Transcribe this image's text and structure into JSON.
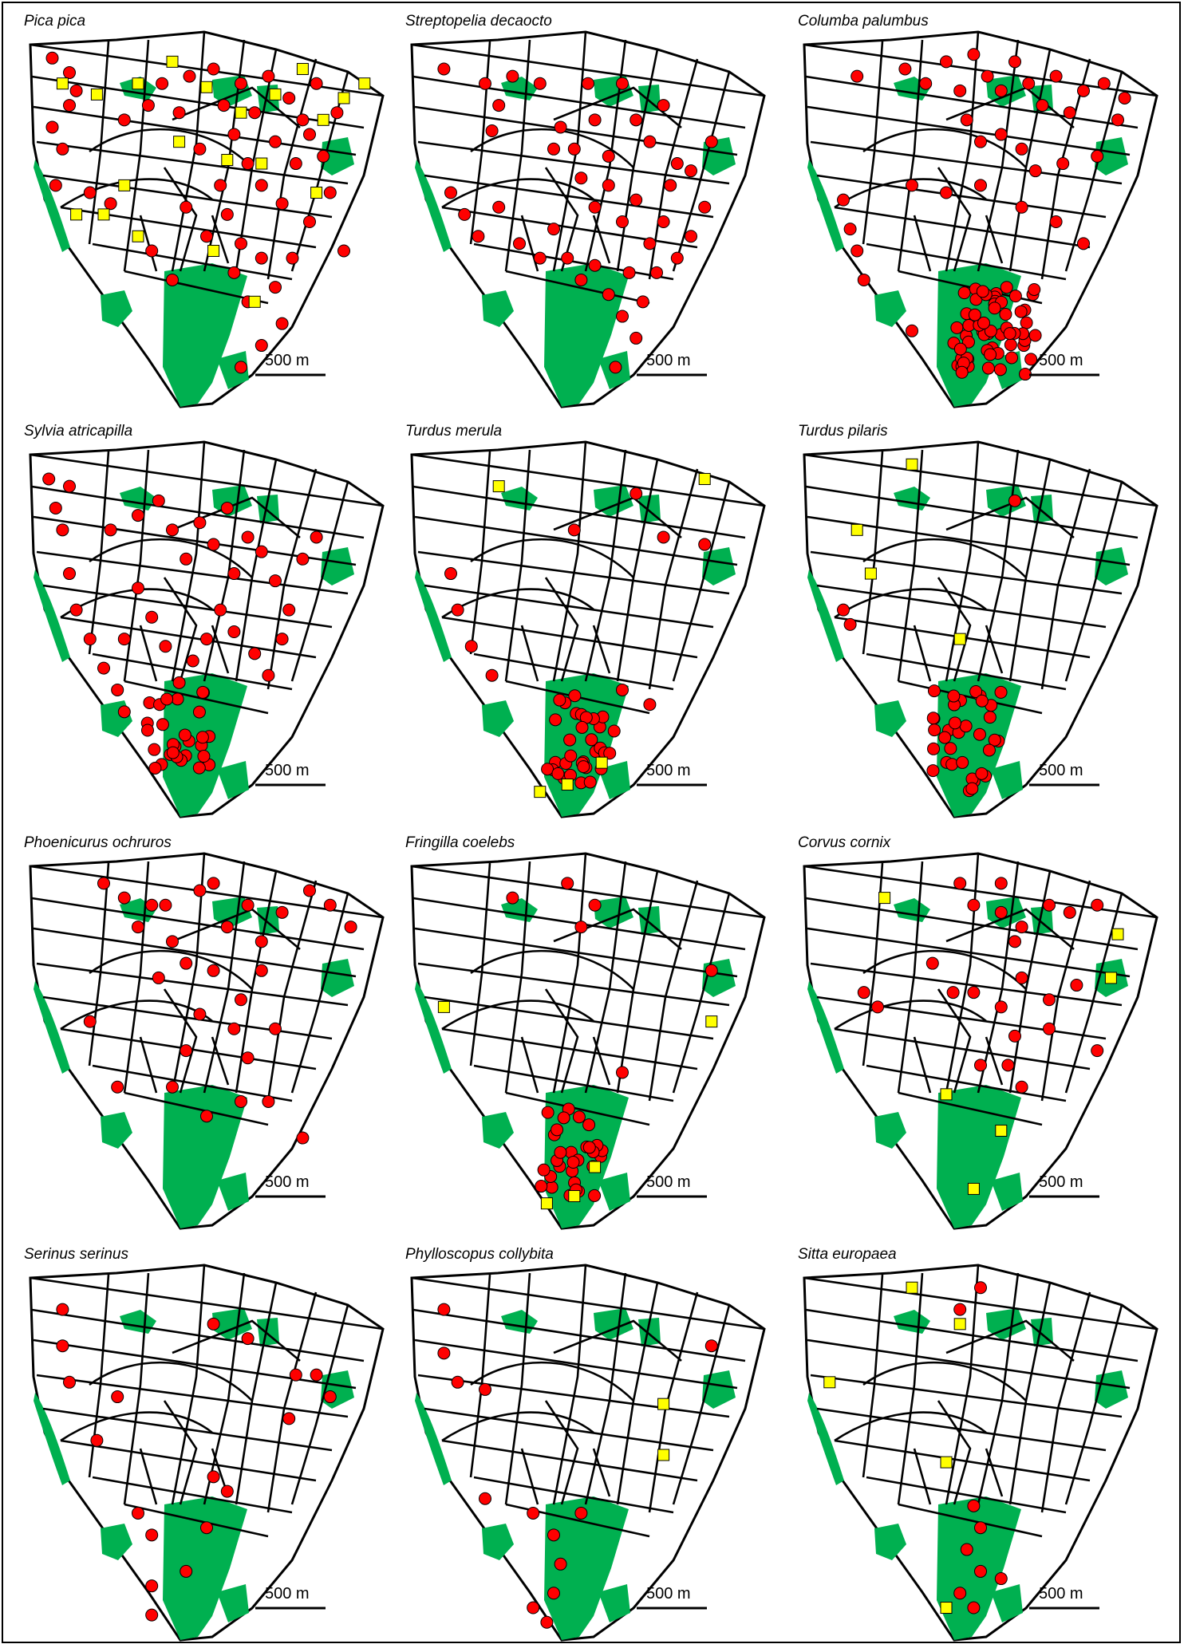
{
  "figure": {
    "scale_label": "500 m",
    "colors": {
      "green": "#00b050",
      "red": "#ff0000",
      "yellow": "#ffff00",
      "road": "#000000"
    },
    "markers": {
      "circle": "red-circle",
      "square": "yellow-square"
    }
  },
  "panels": [
    {
      "species": "Pica pica",
      "circles": [
        [
          0.05,
          0.05
        ],
        [
          0.1,
          0.09
        ],
        [
          0.12,
          0.14
        ],
        [
          0.1,
          0.18
        ],
        [
          0.05,
          0.24
        ],
        [
          0.08,
          0.3
        ],
        [
          0.06,
          0.4
        ],
        [
          0.16,
          0.42
        ],
        [
          0.22,
          0.45
        ],
        [
          0.26,
          0.22
        ],
        [
          0.33,
          0.18
        ],
        [
          0.37,
          0.12
        ],
        [
          0.42,
          0.2
        ],
        [
          0.45,
          0.1
        ],
        [
          0.48,
          0.3
        ],
        [
          0.52,
          0.08
        ],
        [
          0.55,
          0.18
        ],
        [
          0.58,
          0.26
        ],
        [
          0.6,
          0.12
        ],
        [
          0.62,
          0.34
        ],
        [
          0.64,
          0.2
        ],
        [
          0.66,
          0.4
        ],
        [
          0.68,
          0.1
        ],
        [
          0.7,
          0.28
        ],
        [
          0.72,
          0.45
        ],
        [
          0.74,
          0.16
        ],
        [
          0.76,
          0.34
        ],
        [
          0.78,
          0.22
        ],
        [
          0.8,
          0.5
        ],
        [
          0.82,
          0.12
        ],
        [
          0.84,
          0.32
        ],
        [
          0.86,
          0.42
        ],
        [
          0.56,
          0.48
        ],
        [
          0.6,
          0.56
        ],
        [
          0.58,
          0.64
        ],
        [
          0.62,
          0.72
        ],
        [
          0.66,
          0.6
        ],
        [
          0.7,
          0.68
        ],
        [
          0.75,
          0.6
        ],
        [
          0.72,
          0.78
        ],
        [
          0.66,
          0.84
        ],
        [
          0.6,
          0.9
        ],
        [
          0.4,
          0.66
        ],
        [
          0.34,
          0.58
        ],
        [
          0.44,
          0.46
        ],
        [
          0.5,
          0.54
        ],
        [
          0.54,
          0.4
        ],
        [
          0.8,
          0.26
        ],
        [
          0.88,
          0.2
        ],
        [
          0.9,
          0.58
        ]
      ],
      "squares": [
        [
          0.08,
          0.12
        ],
        [
          0.18,
          0.15
        ],
        [
          0.3,
          0.12
        ],
        [
          0.4,
          0.06
        ],
        [
          0.5,
          0.13
        ],
        [
          0.6,
          0.2
        ],
        [
          0.7,
          0.15
        ],
        [
          0.78,
          0.08
        ],
        [
          0.84,
          0.22
        ],
        [
          0.9,
          0.16
        ],
        [
          0.96,
          0.12
        ],
        [
          0.42,
          0.28
        ],
        [
          0.56,
          0.33
        ],
        [
          0.66,
          0.34
        ],
        [
          0.26,
          0.4
        ],
        [
          0.12,
          0.48
        ],
        [
          0.2,
          0.48
        ],
        [
          0.3,
          0.54
        ],
        [
          0.52,
          0.58
        ],
        [
          0.64,
          0.72
        ],
        [
          0.82,
          0.42
        ]
      ]
    },
    {
      "species": "Streptopelia decaocto",
      "circles": [
        [
          0.08,
          0.08
        ],
        [
          0.2,
          0.12
        ],
        [
          0.24,
          0.18
        ],
        [
          0.22,
          0.25
        ],
        [
          0.28,
          0.1
        ],
        [
          0.36,
          0.12
        ],
        [
          0.42,
          0.24
        ],
        [
          0.46,
          0.3
        ],
        [
          0.5,
          0.12
        ],
        [
          0.52,
          0.22
        ],
        [
          0.56,
          0.32
        ],
        [
          0.6,
          0.12
        ],
        [
          0.64,
          0.22
        ],
        [
          0.68,
          0.28
        ],
        [
          0.72,
          0.18
        ],
        [
          0.76,
          0.34
        ],
        [
          0.48,
          0.38
        ],
        [
          0.52,
          0.46
        ],
        [
          0.56,
          0.4
        ],
        [
          0.6,
          0.5
        ],
        [
          0.64,
          0.44
        ],
        [
          0.68,
          0.56
        ],
        [
          0.72,
          0.5
        ],
        [
          0.76,
          0.6
        ],
        [
          0.8,
          0.54
        ],
        [
          0.84,
          0.46
        ],
        [
          0.1,
          0.42
        ],
        [
          0.14,
          0.48
        ],
        [
          0.18,
          0.54
        ],
        [
          0.24,
          0.46
        ],
        [
          0.3,
          0.56
        ],
        [
          0.36,
          0.6
        ],
        [
          0.4,
          0.52
        ],
        [
          0.44,
          0.6
        ],
        [
          0.48,
          0.66
        ],
        [
          0.52,
          0.62
        ],
        [
          0.56,
          0.7
        ],
        [
          0.6,
          0.76
        ],
        [
          0.64,
          0.82
        ],
        [
          0.58,
          0.9
        ],
        [
          0.62,
          0.64
        ],
        [
          0.66,
          0.72
        ],
        [
          0.7,
          0.64
        ],
        [
          0.74,
          0.4
        ],
        [
          0.8,
          0.36
        ],
        [
          0.86,
          0.28
        ],
        [
          0.4,
          0.3
        ]
      ],
      "squares": []
    },
    {
      "species": "Columba palumbus",
      "circles": [
        [
          0.14,
          0.1
        ],
        [
          0.28,
          0.08
        ],
        [
          0.34,
          0.12
        ],
        [
          0.4,
          0.06
        ],
        [
          0.44,
          0.14
        ],
        [
          0.48,
          0.04
        ],
        [
          0.52,
          0.1
        ],
        [
          0.56,
          0.14
        ],
        [
          0.6,
          0.06
        ],
        [
          0.64,
          0.12
        ],
        [
          0.68,
          0.18
        ],
        [
          0.72,
          0.1
        ],
        [
          0.76,
          0.2
        ],
        [
          0.8,
          0.14
        ],
        [
          0.86,
          0.12
        ],
        [
          0.92,
          0.16
        ],
        [
          0.9,
          0.22
        ],
        [
          0.46,
          0.22
        ],
        [
          0.5,
          0.28
        ],
        [
          0.56,
          0.26
        ],
        [
          0.62,
          0.3
        ],
        [
          0.66,
          0.36
        ],
        [
          0.74,
          0.34
        ],
        [
          0.84,
          0.32
        ],
        [
          0.3,
          0.4
        ],
        [
          0.4,
          0.42
        ],
        [
          0.5,
          0.4
        ],
        [
          0.1,
          0.44
        ],
        [
          0.12,
          0.52
        ],
        [
          0.14,
          0.58
        ],
        [
          0.16,
          0.66
        ],
        [
          0.3,
          0.8
        ],
        [
          0.62,
          0.46
        ],
        [
          0.72,
          0.5
        ],
        [
          0.8,
          0.56
        ]
      ],
      "cluster": {
        "center": [
          0.54,
          0.8
        ],
        "spread": [
          0.12,
          0.12
        ],
        "count": 60
      },
      "squares": []
    },
    {
      "species": "Sylvia atricapilla",
      "circles": [
        [
          0.04,
          0.08
        ],
        [
          0.1,
          0.1
        ],
        [
          0.06,
          0.16
        ],
        [
          0.08,
          0.22
        ],
        [
          0.1,
          0.34
        ],
        [
          0.12,
          0.44
        ],
        [
          0.16,
          0.52
        ],
        [
          0.2,
          0.6
        ],
        [
          0.24,
          0.66
        ],
        [
          0.26,
          0.72
        ],
        [
          0.22,
          0.22
        ],
        [
          0.3,
          0.18
        ],
        [
          0.36,
          0.14
        ],
        [
          0.4,
          0.22
        ],
        [
          0.44,
          0.3
        ],
        [
          0.48,
          0.2
        ],
        [
          0.52,
          0.26
        ],
        [
          0.56,
          0.16
        ],
        [
          0.58,
          0.34
        ],
        [
          0.62,
          0.24
        ],
        [
          0.66,
          0.28
        ],
        [
          0.7,
          0.36
        ],
        [
          0.74,
          0.44
        ],
        [
          0.78,
          0.3
        ],
        [
          0.82,
          0.24
        ],
        [
          0.54,
          0.44
        ],
        [
          0.5,
          0.52
        ],
        [
          0.46,
          0.58
        ],
        [
          0.42,
          0.64
        ],
        [
          0.58,
          0.5
        ],
        [
          0.64,
          0.56
        ],
        [
          0.68,
          0.62
        ],
        [
          0.3,
          0.38
        ],
        [
          0.34,
          0.46
        ],
        [
          0.38,
          0.54
        ],
        [
          0.72,
          0.52
        ],
        [
          0.26,
          0.52
        ]
      ],
      "cluster": {
        "center": [
          0.42,
          0.76
        ],
        "spread": [
          0.1,
          0.12
        ],
        "count": 28
      },
      "squares": []
    },
    {
      "species": "Turdus merula",
      "circles": [
        [
          0.46,
          0.22
        ],
        [
          0.64,
          0.12
        ],
        [
          0.72,
          0.24
        ],
        [
          0.84,
          0.26
        ],
        [
          0.1,
          0.34
        ],
        [
          0.12,
          0.44
        ],
        [
          0.16,
          0.54
        ],
        [
          0.22,
          0.62
        ],
        [
          0.6,
          0.66
        ],
        [
          0.68,
          0.7
        ]
      ],
      "cluster": {
        "center": [
          0.48,
          0.78
        ],
        "spread": [
          0.1,
          0.14
        ],
        "count": 34
      },
      "squares": [
        [
          0.24,
          0.1
        ],
        [
          0.84,
          0.08
        ],
        [
          0.54,
          0.86
        ],
        [
          0.44,
          0.92
        ],
        [
          0.36,
          0.94
        ]
      ]
    },
    {
      "species": "Turdus pilaris",
      "circles": [
        [
          0.6,
          0.14
        ],
        [
          0.1,
          0.44
        ],
        [
          0.12,
          0.48
        ]
      ],
      "cluster": {
        "center": [
          0.46,
          0.8
        ],
        "spread": [
          0.1,
          0.14
        ],
        "count": 34
      },
      "squares": [
        [
          0.3,
          0.04
        ],
        [
          0.14,
          0.22
        ],
        [
          0.18,
          0.34
        ],
        [
          0.44,
          0.52
        ]
      ]
    },
    {
      "species": "Phoenicurus ochruros",
      "circles": [
        [
          0.2,
          0.06
        ],
        [
          0.26,
          0.1
        ],
        [
          0.34,
          0.12
        ],
        [
          0.3,
          0.18
        ],
        [
          0.38,
          0.12
        ],
        [
          0.48,
          0.08
        ],
        [
          0.52,
          0.06
        ],
        [
          0.56,
          0.18
        ],
        [
          0.62,
          0.12
        ],
        [
          0.66,
          0.22
        ],
        [
          0.72,
          0.14
        ],
        [
          0.8,
          0.08
        ],
        [
          0.86,
          0.12
        ],
        [
          0.92,
          0.18
        ],
        [
          0.4,
          0.22
        ],
        [
          0.44,
          0.28
        ],
        [
          0.36,
          0.32
        ],
        [
          0.52,
          0.3
        ],
        [
          0.6,
          0.38
        ],
        [
          0.66,
          0.3
        ],
        [
          0.58,
          0.46
        ],
        [
          0.48,
          0.42
        ],
        [
          0.44,
          0.52
        ],
        [
          0.4,
          0.62
        ],
        [
          0.62,
          0.54
        ],
        [
          0.7,
          0.46
        ],
        [
          0.16,
          0.44
        ],
        [
          0.5,
          0.7
        ],
        [
          0.6,
          0.66
        ],
        [
          0.68,
          0.66
        ],
        [
          0.24,
          0.62
        ],
        [
          0.78,
          0.76
        ]
      ],
      "squares": []
    },
    {
      "species": "Fringilla coelebs",
      "circles": [
        [
          0.28,
          0.1
        ],
        [
          0.44,
          0.06
        ],
        [
          0.48,
          0.18
        ],
        [
          0.52,
          0.12
        ],
        [
          0.86,
          0.3
        ],
        [
          0.6,
          0.58
        ]
      ],
      "cluster": {
        "center": [
          0.46,
          0.8
        ],
        "spread": [
          0.1,
          0.13
        ],
        "count": 30
      },
      "squares": [
        [
          0.08,
          0.4
        ],
        [
          0.86,
          0.44
        ],
        [
          0.52,
          0.84
        ],
        [
          0.46,
          0.92
        ],
        [
          0.38,
          0.94
        ]
      ]
    },
    {
      "species": "Corvus cornix",
      "circles": [
        [
          0.44,
          0.06
        ],
        [
          0.56,
          0.06
        ],
        [
          0.48,
          0.12
        ],
        [
          0.56,
          0.14
        ],
        [
          0.6,
          0.22
        ],
        [
          0.62,
          0.18
        ],
        [
          0.7,
          0.12
        ],
        [
          0.76,
          0.14
        ],
        [
          0.84,
          0.12
        ],
        [
          0.62,
          0.32
        ],
        [
          0.36,
          0.28
        ],
        [
          0.42,
          0.36
        ],
        [
          0.48,
          0.36
        ],
        [
          0.56,
          0.4
        ],
        [
          0.7,
          0.38
        ],
        [
          0.78,
          0.34
        ],
        [
          0.16,
          0.36
        ],
        [
          0.2,
          0.4
        ],
        [
          0.6,
          0.48
        ],
        [
          0.7,
          0.46
        ],
        [
          0.84,
          0.52
        ],
        [
          0.5,
          0.56
        ],
        [
          0.58,
          0.56
        ],
        [
          0.62,
          0.62
        ]
      ],
      "squares": [
        [
          0.22,
          0.1
        ],
        [
          0.9,
          0.2
        ],
        [
          0.88,
          0.32
        ],
        [
          0.4,
          0.64
        ],
        [
          0.56,
          0.74
        ],
        [
          0.48,
          0.9
        ]
      ]
    },
    {
      "species": "Serinus serinus",
      "circles": [
        [
          0.08,
          0.1
        ],
        [
          0.08,
          0.2
        ],
        [
          0.1,
          0.3
        ],
        [
          0.24,
          0.34
        ],
        [
          0.18,
          0.46
        ],
        [
          0.52,
          0.14
        ],
        [
          0.62,
          0.18
        ],
        [
          0.76,
          0.28
        ],
        [
          0.82,
          0.28
        ],
        [
          0.86,
          0.34
        ],
        [
          0.74,
          0.4
        ],
        [
          0.52,
          0.56
        ],
        [
          0.56,
          0.6
        ],
        [
          0.3,
          0.66
        ],
        [
          0.34,
          0.72
        ],
        [
          0.5,
          0.7
        ],
        [
          0.44,
          0.82
        ],
        [
          0.34,
          0.86
        ],
        [
          0.34,
          0.94
        ]
      ],
      "squares": []
    },
    {
      "species": "Phyllosco­pus collybita",
      "circles": [
        [
          0.08,
          0.1
        ],
        [
          0.08,
          0.22
        ],
        [
          0.12,
          0.3
        ],
        [
          0.2,
          0.32
        ],
        [
          0.86,
          0.2
        ],
        [
          0.2,
          0.62
        ],
        [
          0.34,
          0.66
        ],
        [
          0.48,
          0.66
        ],
        [
          0.4,
          0.72
        ],
        [
          0.42,
          0.8
        ],
        [
          0.4,
          0.88
        ],
        [
          0.34,
          0.92
        ],
        [
          0.38,
          0.96
        ]
      ],
      "squares": [
        [
          0.72,
          0.36
        ],
        [
          0.72,
          0.5
        ]
      ]
    },
    {
      "species": "Sitta europaea",
      "circles": [
        [
          0.44,
          0.1
        ],
        [
          0.5,
          0.04
        ],
        [
          0.48,
          0.64
        ],
        [
          0.5,
          0.7
        ],
        [
          0.46,
          0.76
        ],
        [
          0.5,
          0.82
        ],
        [
          0.44,
          0.88
        ],
        [
          0.48,
          0.92
        ],
        [
          0.56,
          0.84
        ]
      ],
      "squares": [
        [
          0.3,
          0.04
        ],
        [
          0.44,
          0.14
        ],
        [
          0.06,
          0.3
        ],
        [
          0.4,
          0.52
        ],
        [
          0.4,
          0.92
        ]
      ]
    }
  ]
}
